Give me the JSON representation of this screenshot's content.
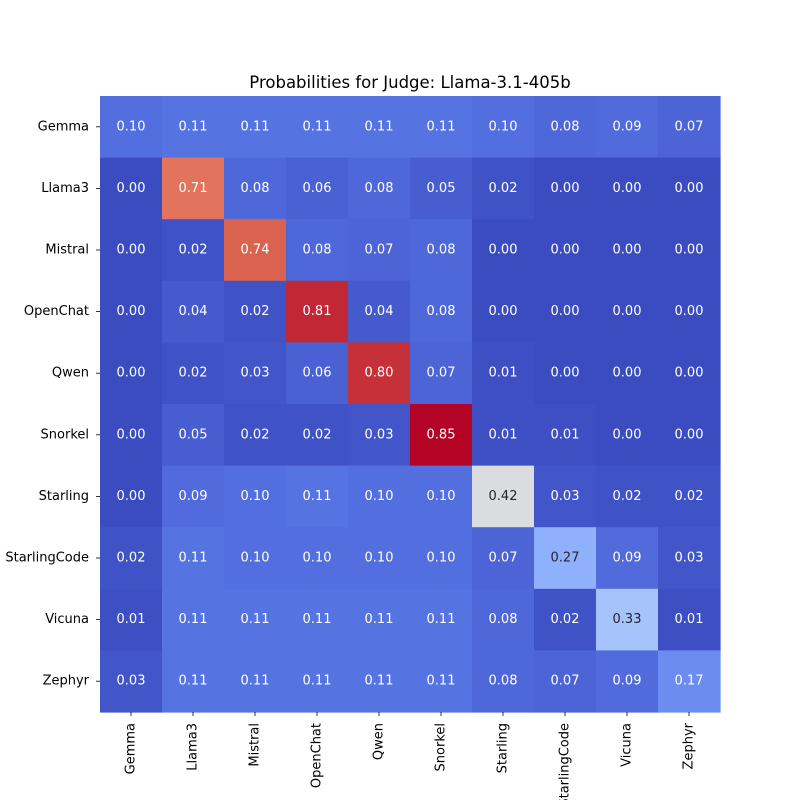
{
  "chart_data": {
    "type": "heatmap",
    "title": "Probabilities for Judge: Llama-3.1-405b",
    "xlabel": "",
    "ylabel": "",
    "rows": [
      "Gemma",
      "Llama3",
      "Mistral",
      "OpenChat",
      "Qwen",
      "Snorkel",
      "Starling",
      "StarlingCode",
      "Vicuna",
      "Zephyr"
    ],
    "columns": [
      "Gemma",
      "Llama3",
      "Mistral",
      "OpenChat",
      "Qwen",
      "Snorkel",
      "Starling",
      "StarlingCode",
      "Vicuna",
      "Zephyr"
    ],
    "values": [
      [
        0.1,
        0.11,
        0.11,
        0.11,
        0.11,
        0.11,
        0.1,
        0.08,
        0.09,
        0.07
      ],
      [
        0.0,
        0.71,
        0.08,
        0.06,
        0.08,
        0.05,
        0.02,
        0.0,
        0.0,
        0.0
      ],
      [
        0.0,
        0.02,
        0.74,
        0.08,
        0.07,
        0.08,
        0.0,
        0.0,
        0.0,
        0.0
      ],
      [
        0.0,
        0.04,
        0.02,
        0.81,
        0.04,
        0.08,
        0.0,
        0.0,
        0.0,
        0.0
      ],
      [
        0.0,
        0.02,
        0.03,
        0.06,
        0.8,
        0.07,
        0.01,
        0.0,
        0.0,
        0.0
      ],
      [
        0.0,
        0.05,
        0.02,
        0.02,
        0.03,
        0.85,
        0.01,
        0.01,
        0.0,
        0.0
      ],
      [
        0.0,
        0.09,
        0.1,
        0.11,
        0.1,
        0.1,
        0.42,
        0.03,
        0.02,
        0.02
      ],
      [
        0.02,
        0.11,
        0.1,
        0.1,
        0.1,
        0.1,
        0.07,
        0.27,
        0.09,
        0.03
      ],
      [
        0.01,
        0.11,
        0.11,
        0.11,
        0.11,
        0.11,
        0.08,
        0.02,
        0.33,
        0.01
      ],
      [
        0.03,
        0.11,
        0.11,
        0.11,
        0.11,
        0.11,
        0.08,
        0.07,
        0.09,
        0.17
      ]
    ],
    "colormap": "coolwarm",
    "colorbar": false,
    "grid": false,
    "annotation_format": "0.00"
  }
}
